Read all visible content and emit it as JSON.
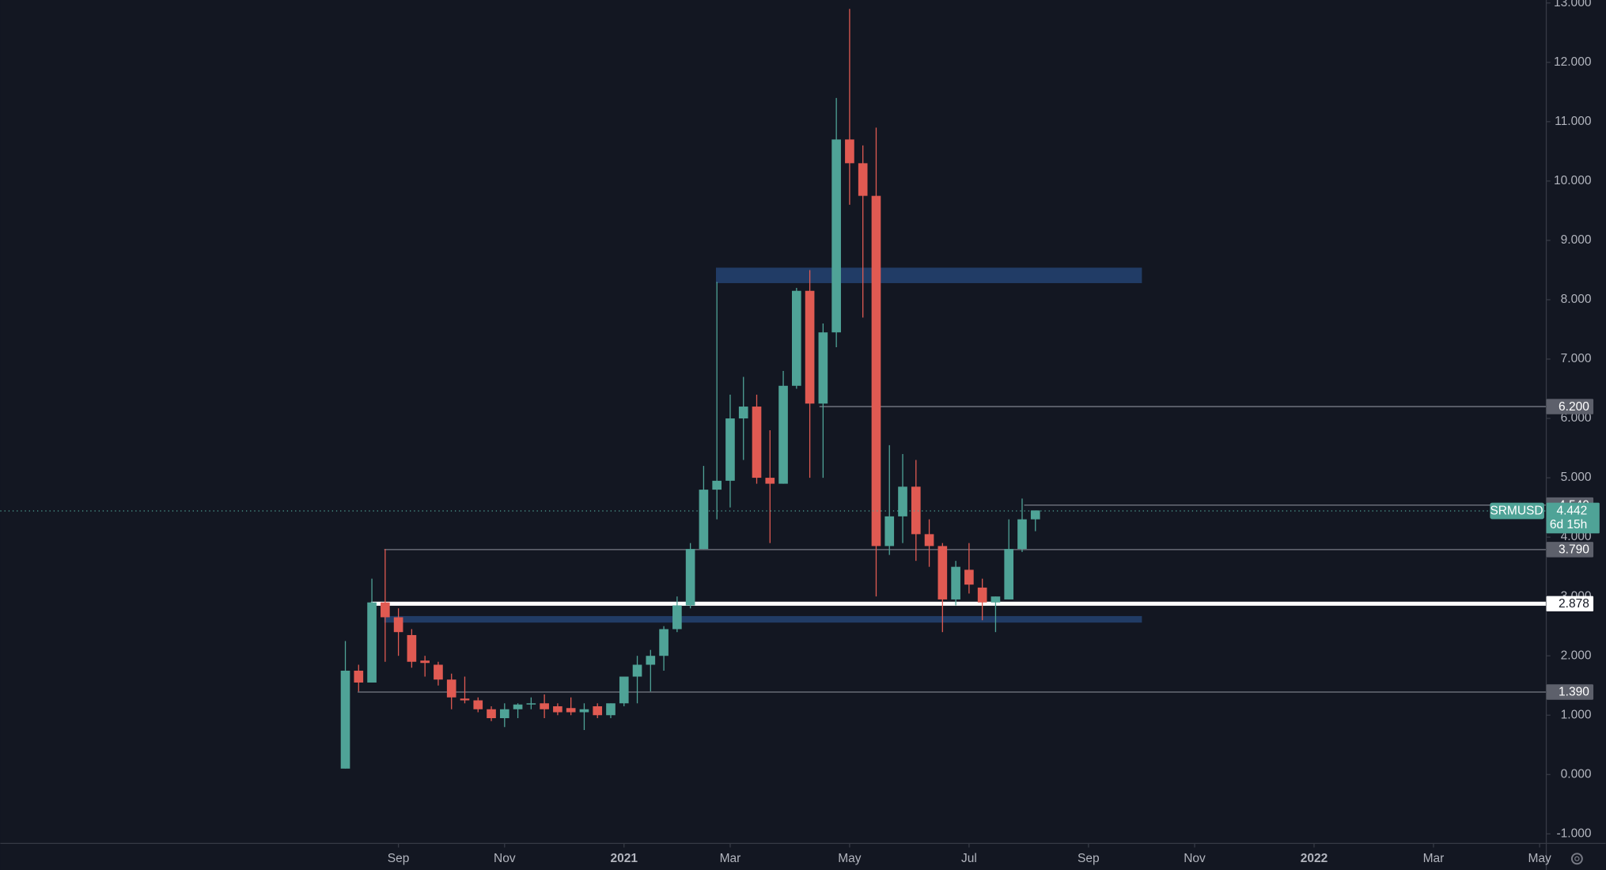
{
  "chart_data": {
    "type": "candlestick",
    "symbol": "SRMUSD",
    "last_price": 4.442,
    "countdown": "6d 15h",
    "up_color": "#4fa397",
    "down_color": "#e05a52",
    "zone_color": "#24406e",
    "open": [
      0.1,
      1.75,
      1.55,
      2.9,
      2.65,
      2.35,
      1.92,
      1.85,
      1.6,
      1.28,
      1.25,
      1.1,
      0.95,
      1.1,
      1.18,
      1.2,
      1.15,
      1.12,
      1.05,
      1.15,
      1.0,
      1.2,
      1.65,
      1.85,
      2.0,
      2.45,
      2.85,
      3.8,
      4.8,
      4.95,
      6.0,
      6.2,
      5.0,
      4.9,
      6.55,
      8.15,
      6.25,
      7.45,
      10.7,
      10.3,
      9.75,
      3.85,
      4.35,
      4.85,
      4.05,
      3.85,
      2.95,
      3.45,
      3.15,
      2.9,
      2.95,
      3.8,
      4.3
    ],
    "high": [
      2.25,
      1.85,
      3.3,
      3.8,
      2.8,
      2.45,
      2.0,
      1.9,
      1.7,
      1.65,
      1.3,
      1.15,
      1.2,
      1.2,
      1.3,
      1.35,
      1.2,
      1.3,
      1.2,
      1.2,
      1.2,
      1.65,
      2.0,
      2.1,
      2.5,
      3.0,
      3.9,
      5.2,
      8.3,
      6.4,
      6.7,
      6.4,
      5.8,
      6.8,
      8.2,
      8.5,
      7.6,
      11.4,
      12.9,
      10.6,
      10.9,
      5.55,
      5.4,
      5.3,
      4.3,
      3.9,
      3.6,
      3.9,
      3.3,
      3.0,
      4.3,
      4.65,
      4.45
    ],
    "low": [
      0.1,
      1.4,
      1.55,
      1.9,
      2.0,
      1.8,
      1.65,
      1.5,
      1.1,
      1.2,
      1.05,
      0.9,
      0.8,
      0.95,
      1.1,
      0.95,
      1.0,
      1.0,
      0.75,
      0.95,
      0.95,
      1.15,
      1.2,
      1.4,
      1.75,
      2.4,
      2.8,
      3.8,
      4.3,
      4.5,
      5.3,
      4.9,
      3.9,
      4.9,
      6.5,
      5.0,
      5.0,
      7.2,
      9.6,
      7.7,
      3.0,
      3.7,
      3.9,
      3.6,
      3.5,
      2.4,
      2.85,
      3.05,
      2.6,
      2.4,
      2.95,
      3.75,
      4.1
    ],
    "close": [
      1.75,
      1.55,
      2.9,
      2.65,
      2.4,
      1.9,
      1.88,
      1.6,
      1.3,
      1.25,
      1.1,
      0.95,
      1.1,
      1.18,
      1.2,
      1.1,
      1.05,
      1.05,
      1.1,
      1.0,
      1.2,
      1.65,
      1.85,
      2.0,
      2.45,
      2.85,
      3.8,
      4.8,
      4.95,
      6.0,
      6.2,
      5.0,
      4.9,
      6.55,
      8.15,
      6.25,
      7.45,
      10.7,
      10.3,
      9.75,
      3.85,
      4.35,
      4.85,
      4.05,
      3.85,
      2.95,
      3.5,
      3.2,
      2.9,
      3.0,
      3.8,
      4.3,
      4.45
    ],
    "xlim": [
      -26,
      90.5
    ],
    "xticks": [
      {
        "value": 4,
        "label": "Sep"
      },
      {
        "value": 12,
        "label": "Nov"
      },
      {
        "value": 21,
        "label": "2021"
      },
      {
        "value": 29,
        "label": "Mar"
      },
      {
        "value": 38,
        "label": "May"
      },
      {
        "value": 47,
        "label": "Jul"
      },
      {
        "value": 56,
        "label": "Sep"
      },
      {
        "value": 64,
        "label": "Nov"
      },
      {
        "value": 73,
        "label": "2022"
      },
      {
        "value": 82,
        "label": "Mar"
      },
      {
        "value": 90,
        "label": "May"
      }
    ],
    "ylim": [
      -1.16,
      13.05
    ],
    "yticks": [
      {
        "value": -1,
        "label": "-1.000"
      },
      {
        "value": 0,
        "label": "0.000"
      },
      {
        "value": 1,
        "label": "1.000"
      },
      {
        "value": 2,
        "label": "2.000"
      },
      {
        "value": 3,
        "label": "3.000"
      },
      {
        "value": 4,
        "label": "4.000"
      },
      {
        "value": 5,
        "label": "5.000"
      },
      {
        "value": 6,
        "label": "6.000"
      },
      {
        "value": 7,
        "label": "7.000"
      },
      {
        "value": 8,
        "label": "8.000"
      },
      {
        "value": 9,
        "label": "9.000"
      },
      {
        "value": 10,
        "label": "10.000"
      },
      {
        "value": 11,
        "label": "11.000"
      },
      {
        "value": 12,
        "label": "12.000"
      },
      {
        "value": 13,
        "label": "13.000"
      }
    ],
    "levels": [
      {
        "value": 6.2,
        "label": "6.200"
      },
      {
        "value": 4.54,
        "label": "4.540"
      },
      {
        "value": 3.79,
        "label": "3.790"
      },
      {
        "value": 2.878,
        "label": "2.878"
      },
      {
        "value": 1.39,
        "label": "1.390"
      }
    ],
    "zones": [
      {
        "low": 8.28,
        "high": 8.54
      },
      {
        "low": 2.56,
        "high": 2.67
      }
    ]
  }
}
